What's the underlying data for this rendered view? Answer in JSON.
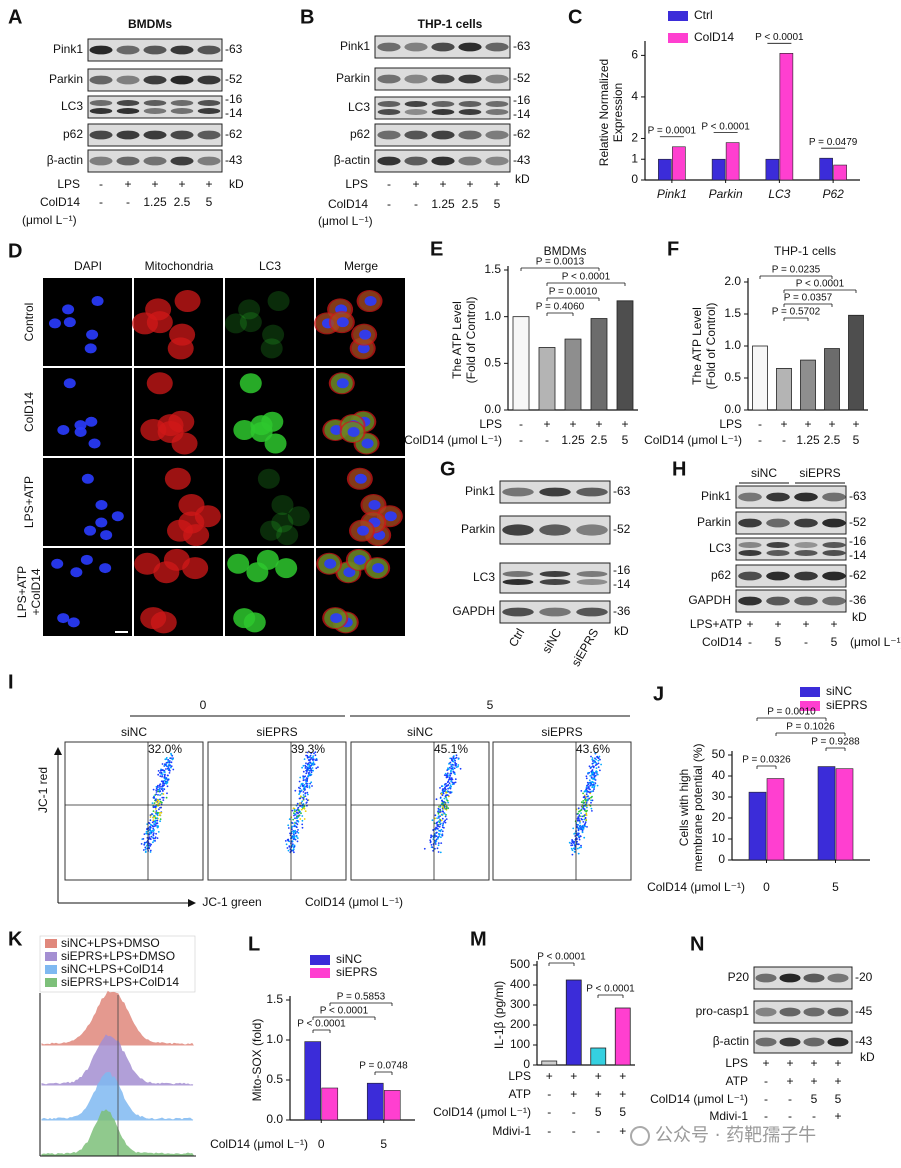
{
  "chart_data": [
    {
      "type": "bar",
      "label": "C",
      "y_label": [
        "Relative Normalized",
        "Expression"
      ],
      "categories": [
        "Pink1",
        "Parkin",
        "LC3",
        "P62"
      ],
      "series": [
        {
          "name": "Ctrl",
          "color": "#3b2cd9",
          "values": [
            1.0,
            1.0,
            1.0,
            1.05
          ]
        },
        {
          "name": "ColD14",
          "color": "#ff3fd0",
          "values": [
            1.6,
            1.8,
            6.1,
            0.72
          ]
        }
      ],
      "ylim": [
        0,
        6.5
      ],
      "yticks": [
        0,
        1,
        2,
        4,
        6
      ],
      "annotations": [
        "P = 0.0001",
        "P < 0.0001",
        "P < 0.0001",
        "P = 0.0479"
      ]
    },
    {
      "type": "bar",
      "label": "E",
      "title": "BMDMs",
      "y_label": [
        "The ATP Level",
        "(Fold of Control)"
      ],
      "values": [
        1.0,
        0.67,
        0.76,
        0.98,
        1.17
      ],
      "colors": [
        "#f7f7f7",
        "#b4b4b4",
        "#8e8e8e",
        "#6c6c6c",
        "#4e4e4e"
      ],
      "ylim": [
        0,
        1.5
      ],
      "yticks": [
        {
          "value": 0,
          "label": "0.0"
        },
        {
          "value": 0.5,
          "label": "0.5"
        },
        {
          "value": 1,
          "label": "1.0"
        },
        {
          "value": 1.5,
          "label": "1.5"
        }
      ],
      "conditions": [
        {
          "name": "LPS",
          "values": [
            "-",
            "+",
            "+",
            "+",
            "+"
          ]
        },
        {
          "name": "ColD14 (μmol L⁻¹)",
          "values": [
            "-",
            "-",
            "1.25",
            "2.5",
            "5"
          ]
        }
      ],
      "annotations": [
        "P = 0.0013",
        "P < 0.0001",
        "P = 0.0010",
        "P = 0.4060"
      ]
    },
    {
      "type": "bar",
      "label": "F",
      "title": "THP-1 cells",
      "y_label": [
        "The ATP Level",
        "(Fold of Control)"
      ],
      "values": [
        1.0,
        0.65,
        0.78,
        0.96,
        1.48
      ],
      "colors": [
        "#f7f7f7",
        "#b4b4b4",
        "#8e8e8e",
        "#6c6c6c",
        "#4e4e4e"
      ],
      "ylim": [
        0,
        2
      ],
      "yticks": [
        {
          "value": 0,
          "label": "0.0"
        },
        {
          "value": 0.5,
          "label": "0.5"
        },
        {
          "value": 1,
          "label": "1.0"
        },
        {
          "value": 1.5,
          "label": "1.5"
        },
        {
          "value": 2,
          "label": "2.0"
        }
      ],
      "conditions": [
        {
          "name": "LPS",
          "values": [
            "-",
            "+",
            "+",
            "+",
            "+"
          ]
        },
        {
          "name": "ColD14 (μmol L⁻¹)",
          "values": [
            "-",
            "-",
            "1.25",
            "2.5",
            "5"
          ]
        }
      ],
      "annotations": [
        "P = 0.0235",
        "P < 0.0001",
        "P = 0.0357",
        "P = 0.5702"
      ]
    },
    {
      "type": "bar",
      "label": "J",
      "y_label": [
        "Cells with high",
        "membrane potential (%)"
      ],
      "x_label": "ColD14 (μmol L⁻¹)",
      "categories": [
        "0",
        "5"
      ],
      "series": [
        {
          "name": "siNC",
          "color": "#3b2cd9",
          "values": [
            32.3,
            44.5
          ]
        },
        {
          "name": "siEPRS",
          "color": "#ff3fd0",
          "values": [
            38.8,
            43.5
          ]
        }
      ],
      "ylim": [
        0,
        50
      ],
      "yticks": [
        0,
        10,
        20,
        30,
        40,
        50
      ],
      "annotations": [
        "P = 0.0010",
        "P = 0.1026",
        "P = 0.0326",
        "P = 0.9288"
      ]
    },
    {
      "type": "bar",
      "label": "L",
      "y_label": [
        "Mito-SOX (fold)"
      ],
      "x_label": "ColD14 (μmol L⁻¹)",
      "categories": [
        "0",
        "5"
      ],
      "series": [
        {
          "name": "siNC",
          "color": "#3b2cd9",
          "values": [
            0.98,
            0.46
          ]
        },
        {
          "name": "siEPRS",
          "color": "#ff3fd0",
          "values": [
            0.4,
            0.37
          ]
        }
      ],
      "ylim": [
        0,
        1.5
      ],
      "yticks": [
        {
          "value": 0,
          "label": "0.0"
        },
        {
          "value": 0.5,
          "label": "0.5"
        },
        {
          "value": 1,
          "label": "1.0"
        },
        {
          "value": 1.5,
          "label": "1.5"
        }
      ],
      "annotations": [
        "P = 0.5853",
        "P < 0.0001",
        "P < 0.0001",
        "P = 0.0748"
      ]
    },
    {
      "type": "bar",
      "label": "M",
      "y_label": [
        "IL-1β (pg/ml)"
      ],
      "values": [
        20,
        425,
        85,
        285
      ],
      "colors": [
        "#cfcfcf",
        "#3b2cd9",
        "#35d0e0",
        "#ff3fd0"
      ],
      "ylim": [
        0,
        500
      ],
      "yticks": [
        0,
        100,
        200,
        300,
        400,
        500
      ],
      "conditions": [
        {
          "name": "LPS",
          "values": [
            "+",
            "+",
            "+",
            "+"
          ]
        },
        {
          "name": "ATP",
          "values": [
            "-",
            "+",
            "+",
            "+"
          ]
        },
        {
          "name": "ColD14 (μmol L⁻¹)",
          "values": [
            "-",
            "-",
            "5",
            "5"
          ]
        },
        {
          "name": "Mdivi-1",
          "values": [
            "-",
            "-",
            "-",
            "+"
          ]
        }
      ],
      "annotations": [
        "P < 0.0001",
        "P < 0.0001"
      ]
    }
  ],
  "blots": [
    {
      "label": "A",
      "title": "BMDMs",
      "rows": [
        {
          "name": "Pink1",
          "markers": [
            "-63"
          ]
        },
        {
          "name": "Parkin",
          "markers": [
            "-52"
          ]
        },
        {
          "name": "LC3",
          "markers": [
            "-16",
            "-14"
          ]
        },
        {
          "name": "p62",
          "markers": [
            "-62"
          ]
        },
        {
          "name": "β-actin",
          "markers": [
            "-43"
          ]
        }
      ],
      "kd": "kD",
      "conditions": [
        {
          "name": "LPS",
          "values": [
            "-",
            "+",
            "+",
            "+",
            "+"
          ]
        },
        {
          "name": "ColD14",
          "values": [
            "-",
            "-",
            "1.25",
            "2.5",
            "5"
          ]
        }
      ],
      "unit": "(μmol L⁻¹)"
    },
    {
      "label": "B",
      "title": "THP-1 cells",
      "rows": [
        {
          "name": "Pink1",
          "markers": [
            "-63"
          ]
        },
        {
          "name": "Parkin",
          "markers": [
            "-52"
          ]
        },
        {
          "name": "LC3",
          "markers": [
            "-16",
            "-14"
          ]
        },
        {
          "name": "p62",
          "markers": [
            "-62"
          ]
        },
        {
          "name": "β-actin",
          "markers": [
            "-43"
          ]
        }
      ],
      "kd": "kD",
      "conditions": [
        {
          "name": "LPS",
          "values": [
            "-",
            "+",
            "+",
            "+",
            "+"
          ]
        },
        {
          "name": "ColD14",
          "values": [
            "-",
            "-",
            "1.25",
            "2.5",
            "5"
          ]
        }
      ],
      "unit": "(μmol L⁻¹)"
    },
    {
      "label": "G",
      "rows": [
        {
          "name": "Pink1",
          "markers": [
            "-63"
          ]
        },
        {
          "name": "Parkin",
          "markers": [
            "-52"
          ]
        },
        {
          "name": "LC3",
          "markers": [
            "-16",
            "-14"
          ]
        },
        {
          "name": "GAPDH",
          "markers": [
            "-36"
          ]
        }
      ],
      "kd": "kD",
      "lanes": [
        "Ctrl",
        "siNC",
        "siEPRS"
      ]
    },
    {
      "label": "H",
      "groups": [
        "siNC",
        "siEPRS"
      ],
      "rows": [
        {
          "name": "Pink1",
          "markers": [
            "-63"
          ]
        },
        {
          "name": "Parkin",
          "markers": [
            "-52"
          ]
        },
        {
          "name": "LC3",
          "markers": [
            "-16",
            "-14"
          ]
        },
        {
          "name": "p62",
          "markers": [
            "-62"
          ]
        },
        {
          "name": "GAPDH",
          "markers": [
            "-36"
          ]
        }
      ],
      "kd": "kD",
      "conditions": [
        {
          "name": "LPS+ATP",
          "values": [
            "+",
            "+",
            "+",
            "+"
          ]
        },
        {
          "name": "ColD14",
          "values": [
            "-",
            "5",
            "-",
            "5"
          ]
        }
      ],
      "unit": "(μmol L⁻¹)"
    },
    {
      "label": "N",
      "rows": [
        {
          "name": "P20",
          "markers": [
            "-20"
          ]
        },
        {
          "name": "pro-casp1",
          "markers": [
            "-45"
          ]
        },
        {
          "name": "β-actin",
          "markers": [
            "-43"
          ]
        }
      ],
      "kd": "kD",
      "conditions": [
        {
          "name": "LPS",
          "values": [
            "+",
            "+",
            "+",
            "+"
          ]
        },
        {
          "name": "ATP",
          "values": [
            "-",
            "+",
            "+",
            "+"
          ]
        },
        {
          "name": "ColD14 (μmol L⁻¹)",
          "values": [
            "-",
            "-",
            "5",
            "5"
          ]
        },
        {
          "name": "Mdivi-1",
          "values": [
            "-",
            "-",
            "-",
            "+"
          ]
        }
      ]
    }
  ],
  "images": {
    "label": "D",
    "columns": [
      "DAPI",
      "Mitochondria",
      "LC3",
      "Merge"
    ],
    "rows": [
      [
        "Control"
      ],
      [
        "ColD14"
      ],
      [
        "LPS+ATP"
      ],
      [
        "LPS+ATP",
        "+ColD14"
      ]
    ]
  },
  "flow": {
    "label": "I",
    "groups": [
      "0",
      "5"
    ],
    "samples": [
      "siNC",
      "siEPRS",
      "siNC",
      "siEPRS"
    ],
    "percentages": [
      "32.0%",
      "39.3%",
      "45.1%",
      "43.6%"
    ],
    "y_axis": "JC-1 red",
    "x_axis": "JC-1 green",
    "x_label": "ColD14 (μmol L⁻¹)"
  },
  "histograms": {
    "label": "K",
    "legend": [
      {
        "name": "siNC+LPS+DMSO",
        "color": "#e0887c"
      },
      {
        "name": "siEPRS+LPS+DMSO",
        "color": "#a48fd2"
      },
      {
        "name": "siNC+LPS+ColD14",
        "color": "#7fb9f1"
      },
      {
        "name": "siEPRS+LPS+ColD14",
        "color": "#7dc07a"
      }
    ]
  },
  "watermark": "公众号 · 药靶孺子牛"
}
